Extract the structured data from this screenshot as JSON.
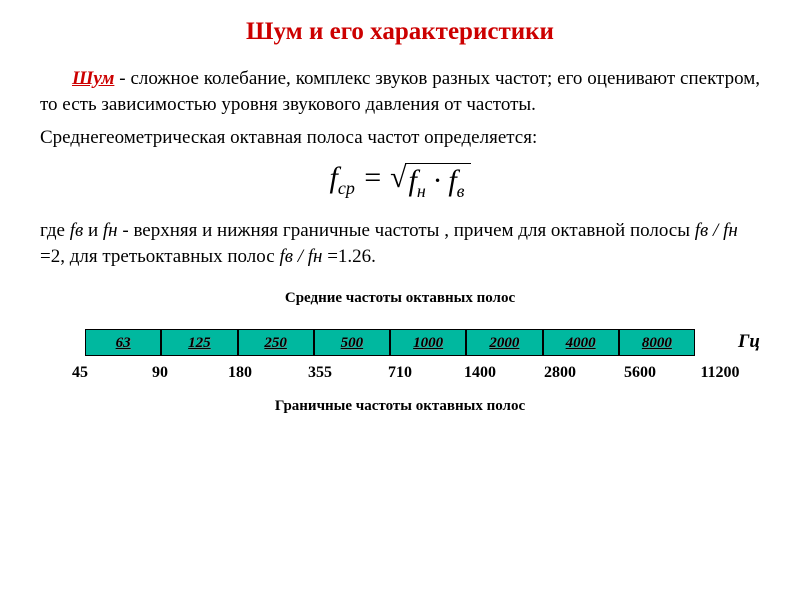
{
  "title": "Шум и его характеристики",
  "lead_word": "Шум",
  "para_rest": " - сложное колебание, комплекс звуков разных частот; его оценивают спектром, то есть зависимостью уровня звукового давления от частоты.",
  "subline": "Среднегеометрическая октавная полоса частот определяется:",
  "formula": {
    "lhs_f": "f",
    "lhs_sub": "ср",
    "eq": " = ",
    "r_f1": "f",
    "r_sub1": "н",
    "dot": " · ",
    "r_f2": "f",
    "r_sub2": "в"
  },
  "where_1": "где ",
  "where_fv": "fв",
  "where_2": "  и  ",
  "where_fn": "fн",
  "where_3": "  - верхняя и нижняя граничные частоты , причем для октавной полосы ",
  "where_ratio1": "fв / fн",
  "where_4": " =2, для третьоктавных полос ",
  "where_ratio2": "fв / fн",
  "where_5": " =1.26.",
  "caption_mid": "Средние частоты октавных полос",
  "hz": "Гц",
  "mid_freqs": [
    "63",
    "125",
    "250",
    "500",
    "1000",
    "2000",
    "4000",
    "8000"
  ],
  "bound_freqs": [
    "45",
    "90",
    "180",
    "355",
    "710",
    "1400",
    "2800",
    "5600",
    "11200"
  ],
  "caption_bottom": "Граничные частоты октавных полос",
  "colors": {
    "title": "#cc0000",
    "cell_bg": "#00b89f",
    "text": "#000000",
    "bg": "#ffffff"
  }
}
